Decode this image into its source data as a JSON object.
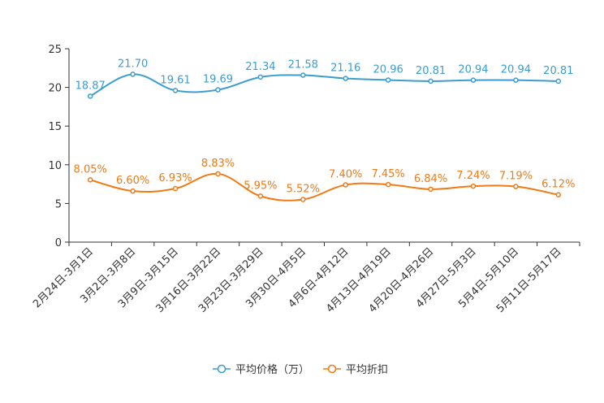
{
  "chart_data": {
    "type": "line",
    "title": "",
    "xlabel": "",
    "ylabel": "",
    "ylim": [
      0,
      25
    ],
    "yticks": [
      0,
      5,
      10,
      15,
      20,
      25
    ],
    "grid": false,
    "legend_position": "bottom-center",
    "categories": [
      "2月24日-3月1日",
      "3月2日-3月8日",
      "3月9日-3月15日",
      "3月16日-3月22日",
      "3月23日-3月29日",
      "3月30日-4月5日",
      "4月6日-4月12日",
      "4月13日-4月19日",
      "4月20日-4月26日",
      "4月27日-5月3日",
      "5月4日-5月10日",
      "5月11日-5月17日"
    ],
    "series": [
      {
        "name": "平均价格（万）",
        "color": "#3c9ccf",
        "values": [
          18.87,
          21.7,
          19.61,
          19.69,
          21.34,
          21.58,
          21.16,
          20.96,
          20.81,
          20.94,
          20.94,
          20.81
        ],
        "labels": [
          "18.87",
          "21.70",
          "19.61",
          "19.69",
          "21.34",
          "21.58",
          "21.16",
          "20.96",
          "20.81",
          "20.94",
          "20.94",
          "20.81"
        ]
      },
      {
        "name": "平均折扣",
        "color": "#f07a14",
        "values": [
          8.05,
          6.6,
          6.93,
          8.83,
          5.95,
          5.52,
          7.4,
          7.45,
          6.84,
          7.24,
          7.19,
          6.12
        ],
        "labels": [
          "8.05%",
          "6.60%",
          "6.93%",
          "8.83%",
          "5.95%",
          "5.52%",
          "7.40%",
          "7.45%",
          "6.84%",
          "7.24%",
          "7.19%",
          "6.12%"
        ]
      }
    ]
  }
}
